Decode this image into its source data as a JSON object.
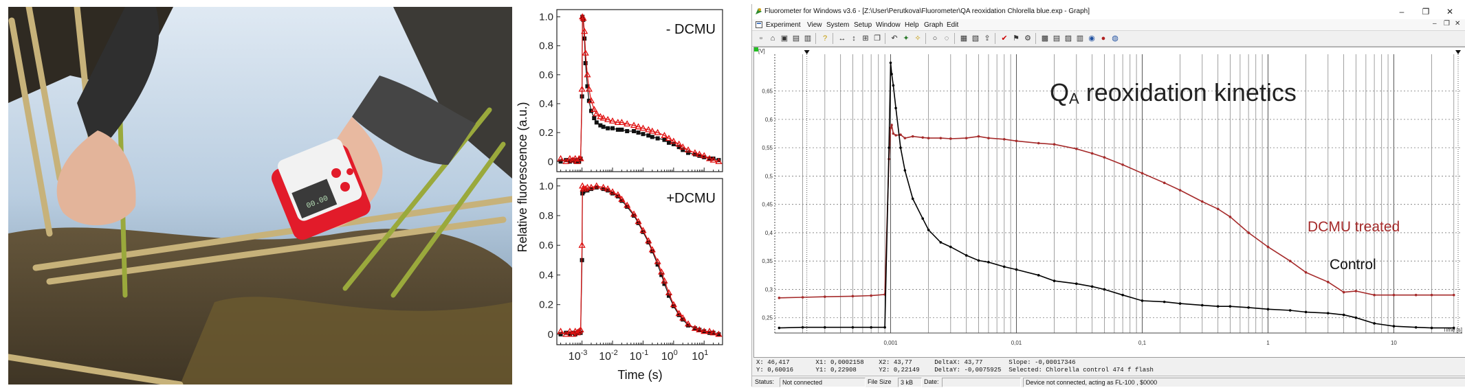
{
  "photo": {
    "device_display": "00.00"
  },
  "chart_data": [
    {
      "type": "scatter",
      "panel": "top",
      "title": "- DCMU",
      "xlabel": "Time (s)",
      "ylabel": "Relative fluorescence (a.u.)",
      "xscale": "log",
      "xlim": [
        0.00015,
        40
      ],
      "ylim": [
        -0.07,
        1.05
      ],
      "yticks": [
        "0",
        "0.2",
        "0.4",
        "0.6",
        "0.8",
        "1.0"
      ],
      "xticks": [
        "10-3",
        "10-2",
        "10-1",
        "100",
        "101"
      ],
      "series": [
        {
          "color": "#111111",
          "marker": "square",
          "x": [
            0.0002,
            0.0003,
            0.0004,
            0.0005,
            0.0006,
            0.0007,
            0.0008,
            0.0009,
            0.001,
            0.00103,
            0.0011,
            0.0012,
            0.0013,
            0.0015,
            0.0017,
            0.002,
            0.0025,
            0.003,
            0.004,
            0.005,
            0.007,
            0.01,
            0.015,
            0.02,
            0.03,
            0.05,
            0.07,
            0.1,
            0.15,
            0.2,
            0.3,
            0.5,
            0.7,
            1,
            1.5,
            2,
            3,
            5,
            7,
            10,
            15,
            20,
            30
          ],
          "y": [
            0.0,
            0.01,
            0.0,
            0.01,
            0.0,
            0.01,
            0.0,
            0.02,
            0.45,
            1.0,
            0.98,
            0.85,
            0.68,
            0.52,
            0.42,
            0.35,
            0.3,
            0.27,
            0.25,
            0.24,
            0.23,
            0.23,
            0.22,
            0.22,
            0.21,
            0.21,
            0.2,
            0.19,
            0.18,
            0.17,
            0.16,
            0.15,
            0.13,
            0.12,
            0.1,
            0.08,
            0.06,
            0.05,
            0.04,
            0.03,
            0.02,
            0.02,
            0.01
          ]
        },
        {
          "color": "#e01010",
          "marker": "triangle",
          "x": [
            0.0002,
            0.0003,
            0.0004,
            0.0005,
            0.0006,
            0.0007,
            0.0008,
            0.0009,
            0.001,
            0.00103,
            0.0011,
            0.0012,
            0.0013,
            0.0015,
            0.0017,
            0.002,
            0.0025,
            0.003,
            0.004,
            0.005,
            0.007,
            0.01,
            0.015,
            0.02,
            0.03,
            0.05,
            0.07,
            0.1,
            0.15,
            0.2,
            0.3,
            0.5,
            0.7,
            1,
            1.5,
            2,
            3,
            5,
            7,
            10,
            15,
            20,
            30
          ],
          "y": [
            0.02,
            0.0,
            0.02,
            0.01,
            0.02,
            0.0,
            0.02,
            0.02,
            0.5,
            1.0,
            0.99,
            0.9,
            0.75,
            0.6,
            0.5,
            0.42,
            0.36,
            0.33,
            0.31,
            0.3,
            0.29,
            0.28,
            0.27,
            0.27,
            0.26,
            0.25,
            0.24,
            0.23,
            0.22,
            0.21,
            0.2,
            0.18,
            0.16,
            0.14,
            0.12,
            0.1,
            0.08,
            0.06,
            0.05,
            0.04,
            0.02,
            0.01,
            0.0
          ]
        }
      ]
    },
    {
      "type": "scatter",
      "panel": "bottom",
      "title": "+DCMU",
      "xlabel": "Time (s)",
      "ylabel": "Relative fluorescence (a.u.)",
      "xscale": "log",
      "xlim": [
        0.00015,
        40
      ],
      "ylim": [
        -0.07,
        1.05
      ],
      "yticks": [
        "0",
        "0.2",
        "0.4",
        "0.6",
        "0.8",
        "1.0"
      ],
      "xticks": [
        "10-3",
        "10-2",
        "10-1",
        "100",
        "101"
      ],
      "series": [
        {
          "color": "#111111",
          "marker": "square",
          "x": [
            0.0002,
            0.0003,
            0.0004,
            0.0005,
            0.0006,
            0.0007,
            0.0008,
            0.0009,
            0.001,
            0.00103,
            0.0011,
            0.0013,
            0.0015,
            0.002,
            0.003,
            0.005,
            0.007,
            0.01,
            0.015,
            0.02,
            0.03,
            0.05,
            0.07,
            0.1,
            0.15,
            0.2,
            0.3,
            0.4,
            0.5,
            0.7,
            1,
            1.5,
            2,
            3,
            5,
            7,
            10,
            15,
            20,
            30
          ],
          "y": [
            0.0,
            0.01,
            0.0,
            0.01,
            0.0,
            0.01,
            0.02,
            0.01,
            0.5,
            0.95,
            0.96,
            0.97,
            0.97,
            0.98,
            0.99,
            0.98,
            0.97,
            0.95,
            0.93,
            0.9,
            0.86,
            0.8,
            0.75,
            0.69,
            0.62,
            0.56,
            0.47,
            0.4,
            0.34,
            0.26,
            0.19,
            0.13,
            0.1,
            0.06,
            0.04,
            0.03,
            0.02,
            0.01,
            0.01,
            0.0
          ]
        },
        {
          "color": "#e01010",
          "marker": "triangle",
          "x": [
            0.0002,
            0.0003,
            0.0004,
            0.0005,
            0.0006,
            0.0007,
            0.0008,
            0.0009,
            0.001,
            0.00103,
            0.0011,
            0.0013,
            0.0015,
            0.002,
            0.003,
            0.005,
            0.007,
            0.01,
            0.015,
            0.02,
            0.03,
            0.05,
            0.07,
            0.1,
            0.15,
            0.2,
            0.3,
            0.4,
            0.5,
            0.7,
            1,
            1.5,
            2,
            3,
            5,
            7,
            10,
            15,
            20,
            30
          ],
          "y": [
            0.02,
            0.0,
            0.02,
            0.0,
            0.02,
            0.01,
            0.02,
            0.03,
            0.6,
            1.0,
            0.98,
            0.98,
            0.99,
            0.99,
            1.0,
            0.99,
            0.98,
            0.96,
            0.94,
            0.91,
            0.87,
            0.81,
            0.76,
            0.7,
            0.63,
            0.57,
            0.49,
            0.42,
            0.36,
            0.28,
            0.2,
            0.14,
            0.11,
            0.07,
            0.04,
            0.03,
            0.02,
            0.02,
            0.01,
            0.0
          ]
        }
      ]
    },
    {
      "type": "line",
      "panel": "software",
      "title": "QA reoxidation kinetics",
      "xlabel": "Time [s]",
      "ylabel": "[V]",
      "xscale": "log",
      "xlim": [
        0.00012,
        35
      ],
      "ylim": [
        0.223,
        0.715
      ],
      "yticks": [
        "0,25",
        "0,3",
        "0,35",
        "0,4",
        "0,45",
        "0,5",
        "0,55",
        "0,6",
        "0,65"
      ],
      "xticks": [
        "0,001",
        "0,01",
        "0,1",
        "1",
        "10"
      ],
      "series": [
        {
          "name": "DCMU treated",
          "color": "#a52a2a",
          "x": [
            0.00013,
            0.0002,
            0.0003,
            0.0005,
            0.0007,
            0.0009,
            0.00097,
            0.001,
            0.00102,
            0.00105,
            0.0011,
            0.0012,
            0.0013,
            0.0015,
            0.0018,
            0.002,
            0.0025,
            0.003,
            0.004,
            0.005,
            0.006,
            0.008,
            0.01,
            0.015,
            0.02,
            0.03,
            0.04,
            0.05,
            0.07,
            0.1,
            0.15,
            0.2,
            0.3,
            0.4,
            0.5,
            0.7,
            1,
            1.5,
            2,
            3,
            4,
            5,
            7,
            10,
            15,
            20,
            30
          ],
          "y": [
            0.285,
            0.286,
            0.287,
            0.288,
            0.289,
            0.291,
            0.53,
            0.585,
            0.59,
            0.575,
            0.572,
            0.573,
            0.567,
            0.57,
            0.568,
            0.567,
            0.567,
            0.566,
            0.567,
            0.57,
            0.567,
            0.565,
            0.562,
            0.558,
            0.556,
            0.548,
            0.54,
            0.533,
            0.52,
            0.505,
            0.488,
            0.475,
            0.455,
            0.442,
            0.428,
            0.4,
            0.375,
            0.35,
            0.33,
            0.313,
            0.295,
            0.297,
            0.29,
            0.29,
            0.29,
            0.29,
            0.29
          ]
        },
        {
          "name": "Control",
          "color": "#000000",
          "x": [
            0.00013,
            0.0002,
            0.0003,
            0.0005,
            0.0007,
            0.0009,
            0.00097,
            0.001,
            0.00102,
            0.00105,
            0.0011,
            0.0012,
            0.0013,
            0.0015,
            0.0018,
            0.002,
            0.0025,
            0.003,
            0.004,
            0.005,
            0.006,
            0.008,
            0.01,
            0.015,
            0.02,
            0.03,
            0.04,
            0.05,
            0.07,
            0.1,
            0.15,
            0.2,
            0.3,
            0.4,
            0.5,
            0.7,
            1,
            1.5,
            2,
            3,
            4,
            5,
            7,
            10,
            15,
            20,
            30
          ],
          "y": [
            0.232,
            0.233,
            0.233,
            0.233,
            0.233,
            0.233,
            0.55,
            0.7,
            0.68,
            0.66,
            0.62,
            0.55,
            0.51,
            0.46,
            0.425,
            0.405,
            0.383,
            0.375,
            0.36,
            0.351,
            0.348,
            0.34,
            0.335,
            0.325,
            0.315,
            0.31,
            0.305,
            0.3,
            0.29,
            0.28,
            0.278,
            0.275,
            0.272,
            0.27,
            0.27,
            0.268,
            0.265,
            0.263,
            0.26,
            0.258,
            0.255,
            0.25,
            0.24,
            0.235,
            0.233,
            0.232,
            0.232
          ]
        }
      ],
      "annotations": [
        "DCMU treated",
        "Control"
      ]
    }
  ],
  "window": {
    "title": "Fluorometer for Windows v3.6 - [Z:\\User\\Perutkova\\Fluorometer\\QA reoxidation Chlorella blue.exp - Graph]",
    "controls": {
      "minimize": "–",
      "restore": "❐",
      "close": "✕"
    },
    "mdi_controls": {
      "minimize": "–",
      "restore": "❐",
      "close": "✕"
    },
    "menu": [
      "Experiment",
      "View",
      "System",
      "Setup",
      "Window",
      "Help",
      "Graph",
      "Edit"
    ],
    "toolbar_icons": [
      "new",
      "open",
      "save",
      "print",
      "print-preview",
      "help",
      "zoom-x",
      "zoom-y",
      "zoom-fit",
      "copy",
      "undo",
      "flash",
      "bulb",
      "disabled-1",
      "disabled-2",
      "layout",
      "graph-options",
      "export",
      "check",
      "measure",
      "settings",
      "grid",
      "table",
      "copy-graph",
      "table-2",
      "disk",
      "record",
      "globe"
    ],
    "graph": {
      "ylabel": "[V]",
      "xlabel": "Time [s]",
      "overlay_title": "Q",
      "overlay_sub": "A",
      "overlay_rest": " reoxidation kinetics",
      "label_dcmu": "DCMU treated",
      "label_control": "Control",
      "accent_color": "#a52a2a"
    },
    "readout": {
      "line1": "X: 46,417       X1: 0,0002158    X2: 43,77      DeltaX: 43,77       Slope: -0,00017346",
      "line2": "Y: 0,60016      Y1: 0,22908      Y2: 0,22149    DeltaY: -0,0075925  Selected: Chlorella control 474 f flash"
    },
    "status": {
      "status_label": "Status:",
      "status_value": "Not connected",
      "filesize_label": "File Size",
      "filesize_value": "3 kB",
      "date_label": "Date:",
      "date_value": "",
      "message": "Device not connected, acting as FL-100 , $0000"
    }
  }
}
